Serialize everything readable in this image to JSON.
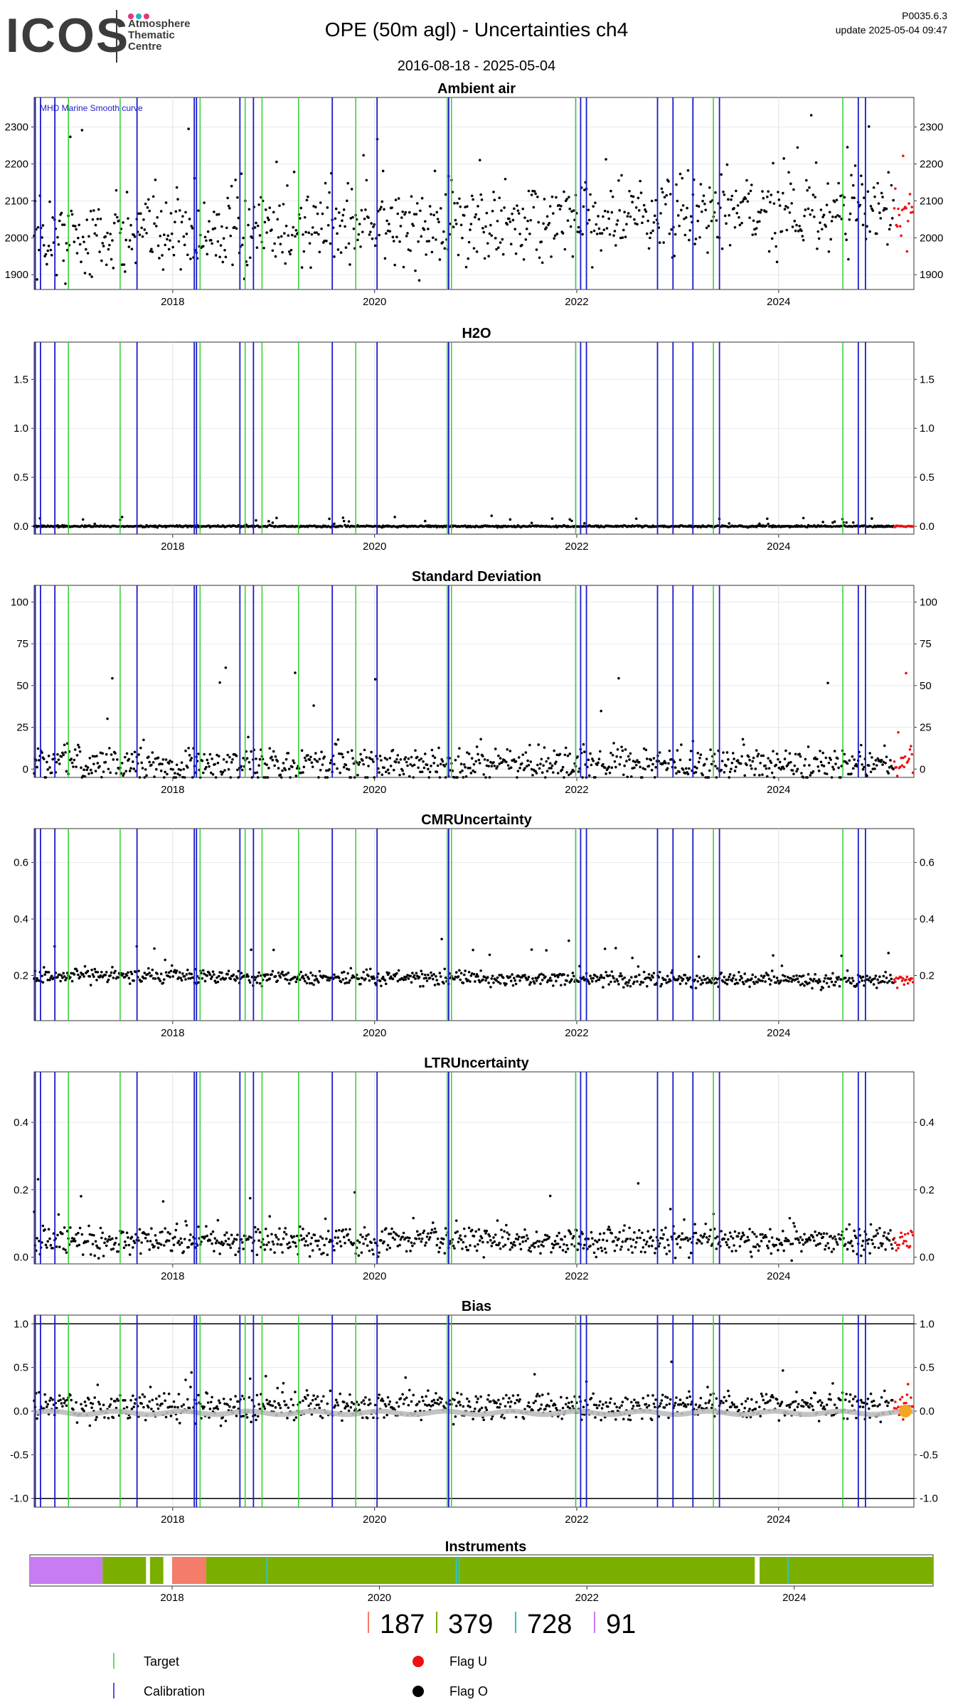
{
  "header": {
    "logo_text": "ICOS",
    "logo_sub": [
      "Atmosphere",
      "Thematic",
      "Centre"
    ],
    "title": "OPE  (50m agl) - Uncertainties ch4",
    "date_range": "2016-08-18 - 2025-05-04",
    "version": "P0035.6.3",
    "update": "update  2025-05-04 09:47"
  },
  "colors": {
    "target": "#33cc33",
    "calibration": "#1a1acc",
    "flag_u": "#ee1111",
    "flag_o": "#000000",
    "smooth": "#bdbdbd",
    "smooth_orange": "#f5a623",
    "inst_187": "#f47c6a",
    "inst_379": "#7aaf00",
    "inst_728": "#2ec4c4",
    "inst_91": "#c77cf2"
  },
  "chart_data": {
    "type": "scatter",
    "x_range": [
      "2016-08-18",
      "2025-05-04"
    ],
    "x_ticks": [
      "2018",
      "2020",
      "2022",
      "2024"
    ],
    "target_dates": [
      "2016-12-20",
      "2017-06-25",
      "2018-04-10",
      "2018-09-20",
      "2018-11-20",
      "2019-04-01",
      "2019-10-25",
      "2020-09-20",
      "2020-10-05",
      "2021-12-28",
      "2023-05-10",
      "2024-08-20"
    ],
    "calibration_dates": [
      "2016-08-22",
      "2016-09-10",
      "2016-11-01",
      "2017-08-25",
      "2018-03-20",
      "2018-03-28",
      "2018-09-01",
      "2018-10-20",
      "2019-08-01",
      "2020-01-10",
      "2020-09-25",
      "2022-01-15",
      "2022-02-05",
      "2022-10-20",
      "2022-12-15",
      "2023-02-25",
      "2023-06-01",
      "2024-10-15",
      "2024-11-10"
    ],
    "panels": [
      {
        "title": "Ambient air",
        "y_ticks": [
          "1900",
          "2000",
          "2100",
          "2200",
          "2300"
        ],
        "ylim": [
          1860,
          2380
        ],
        "annotation": "MHD Marine Smooth curve",
        "baseline": 2000,
        "trend": 80,
        "spread": 55,
        "spike": 260
      },
      {
        "title": "H2O",
        "y_ticks": [
          "0.0",
          "0.5",
          "1.0",
          "1.5"
        ],
        "ylim": [
          -0.08,
          1.88
        ],
        "baseline": 0.0,
        "trend": 0,
        "spread": 0.004,
        "spike": 0.1
      },
      {
        "title": "Standard Deviation",
        "y_ticks": [
          "0",
          "25",
          "50",
          "75",
          "100"
        ],
        "ylim": [
          -5,
          110
        ],
        "baseline": 3,
        "trend": 0,
        "spread": 5,
        "spike": 60
      },
      {
        "title": "CMRUncertainty",
        "y_ticks": [
          "0.2",
          "0.4",
          "0.6"
        ],
        "ylim": [
          0.04,
          0.72
        ],
        "baseline": 0.2,
        "trend": -0.02,
        "spread": 0.012,
        "spike": 0.12
      },
      {
        "title": "LTRUncertainty",
        "y_ticks": [
          "0.0",
          "0.2",
          "0.4"
        ],
        "ylim": [
          -0.02,
          0.55
        ],
        "baseline": 0.05,
        "trend": 0,
        "spread": 0.02,
        "spike": 0.2
      },
      {
        "title": "Bias",
        "y_ticks": [
          "-1.0",
          "-0.5",
          "0.0",
          "0.5",
          "1.0"
        ],
        "ylim": [
          -1.1,
          1.1
        ],
        "baseline": 0.05,
        "trend": 0,
        "spread": 0.08,
        "spike": 0.4,
        "hlines": [
          -1.0,
          1.0
        ]
      }
    ],
    "instruments": {
      "title": "Instruments",
      "x_ticks": [
        "2018",
        "2020",
        "2022",
        "2024"
      ],
      "segments": [
        {
          "id": "91",
          "start": "2016-08-18",
          "end": "2017-05-01"
        },
        {
          "id": "379",
          "start": "2017-05-01",
          "end": "2017-10-01"
        },
        {
          "id": "379",
          "start": "2017-10-15",
          "end": "2017-12-01"
        },
        {
          "id": "187",
          "start": "2018-01-01",
          "end": "2018-05-01"
        },
        {
          "id": "379",
          "start": "2018-05-01",
          "end": "2023-08-15"
        },
        {
          "id": "379",
          "start": "2023-09-01",
          "end": "2025-05-04"
        }
      ],
      "counts": [
        "187",
        "379",
        "728",
        "91"
      ]
    },
    "legend": {
      "target": "Target",
      "calibration": "Calibration",
      "flag_u": "Flag U",
      "flag_o": "Flag O"
    }
  }
}
